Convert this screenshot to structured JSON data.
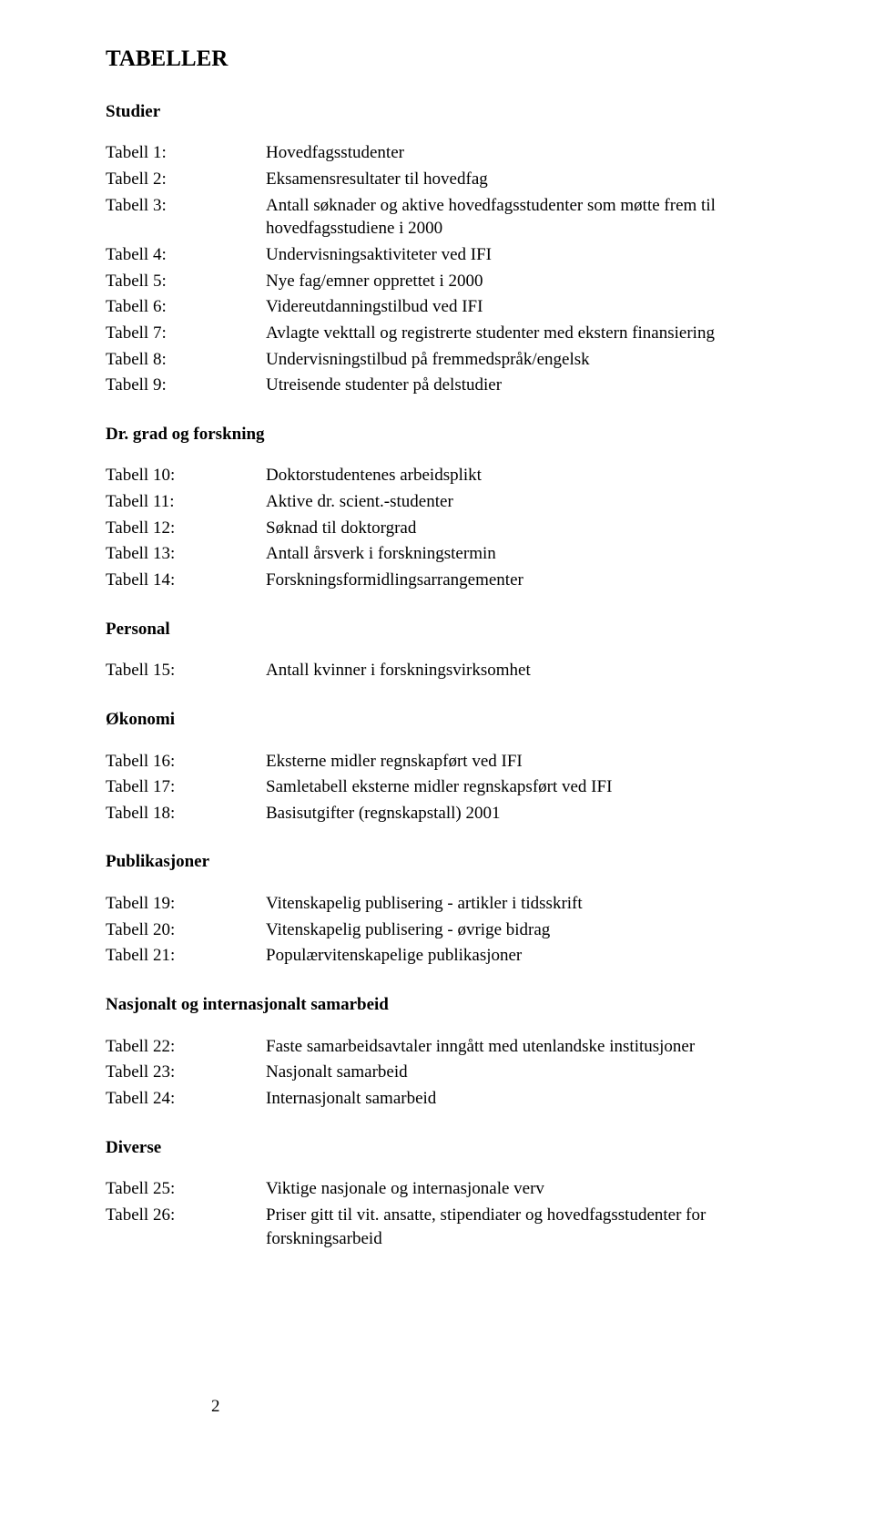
{
  "title": "TABELLER",
  "page_number": "2",
  "sections": [
    {
      "heading": "Studier",
      "items": [
        {
          "label": "Tabell 1:",
          "desc": "Hovedfagsstudenter"
        },
        {
          "label": "Tabell 2:",
          "desc": "Eksamensresultater til hovedfag"
        },
        {
          "label": "Tabell 3:",
          "desc": "Antall søknader og aktive hovedfagsstudenter som møtte frem til hovedfagsstudiene i 2000"
        },
        {
          "label": "Tabell 4:",
          "desc": "Undervisningsaktiviteter ved IFI"
        },
        {
          "label": "Tabell 5:",
          "desc": "Nye fag/emner opprettet i 2000"
        },
        {
          "label": "Tabell 6:",
          "desc": "Videreutdanningstilbud ved IFI"
        },
        {
          "label": "Tabell 7:",
          "desc": "Avlagte vekttall og registrerte studenter med ekstern finansiering"
        },
        {
          "label": "Tabell 8:",
          "desc": "Undervisningstilbud på fremmedspråk/engelsk"
        },
        {
          "label": "Tabell 9:",
          "desc": "Utreisende studenter på delstudier"
        }
      ]
    },
    {
      "heading": "Dr. grad og forskning",
      "items": [
        {
          "label": "Tabell 10:",
          "desc": "Doktorstudentenes arbeidsplikt"
        },
        {
          "label": "Tabell 11:",
          "desc": "Aktive dr. scient.-studenter"
        },
        {
          "label": "Tabell 12:",
          "desc": "Søknad til doktorgrad"
        },
        {
          "label": "Tabell 13:",
          "desc": "Antall årsverk i forskningstermin"
        },
        {
          "label": "Tabell 14:",
          "desc": "Forskningsformidlingsarrangementer"
        }
      ]
    },
    {
      "heading": "Personal",
      "items": [
        {
          "label": "Tabell 15:",
          "desc": "Antall kvinner i forskningsvirksomhet"
        }
      ]
    },
    {
      "heading": "Økonomi",
      "items": [
        {
          "label": "Tabell 16:",
          "desc": "Eksterne midler regnskapført ved IFI"
        },
        {
          "label": "Tabell 17:",
          "desc": "Samletabell eksterne midler regnskapsført ved IFI"
        },
        {
          "label": "Tabell 18:",
          "desc": "Basisutgifter (regnskapstall) 2001"
        }
      ]
    },
    {
      "heading": "Publikasjoner",
      "items": [
        {
          "label": "Tabell 19:",
          "desc": "Vitenskapelig publisering - artikler i tidsskrift"
        },
        {
          "label": "Tabell 20:",
          "desc": "Vitenskapelig publisering - øvrige bidrag"
        },
        {
          "label": "Tabell 21:",
          "desc": "Populærvitenskapelige publikasjoner"
        }
      ]
    },
    {
      "heading": "Nasjonalt og internasjonalt samarbeid",
      "items": [
        {
          "label": "Tabell 22:",
          "desc": "Faste samarbeidsavtaler inngått med utenlandske institusjoner"
        },
        {
          "label": "Tabell 23:",
          "desc": "Nasjonalt samarbeid"
        },
        {
          "label": "Tabell 24:",
          "desc": "Internasjonalt samarbeid"
        }
      ]
    },
    {
      "heading": "Diverse",
      "items": [
        {
          "label": "Tabell 25:",
          "desc": "Viktige nasjonale og internasjonale verv"
        },
        {
          "label": "Tabell 26:",
          "desc": "Priser gitt til vit. ansatte, stipendiater og hovedfagsstudenter for forskningsarbeid"
        }
      ]
    }
  ]
}
